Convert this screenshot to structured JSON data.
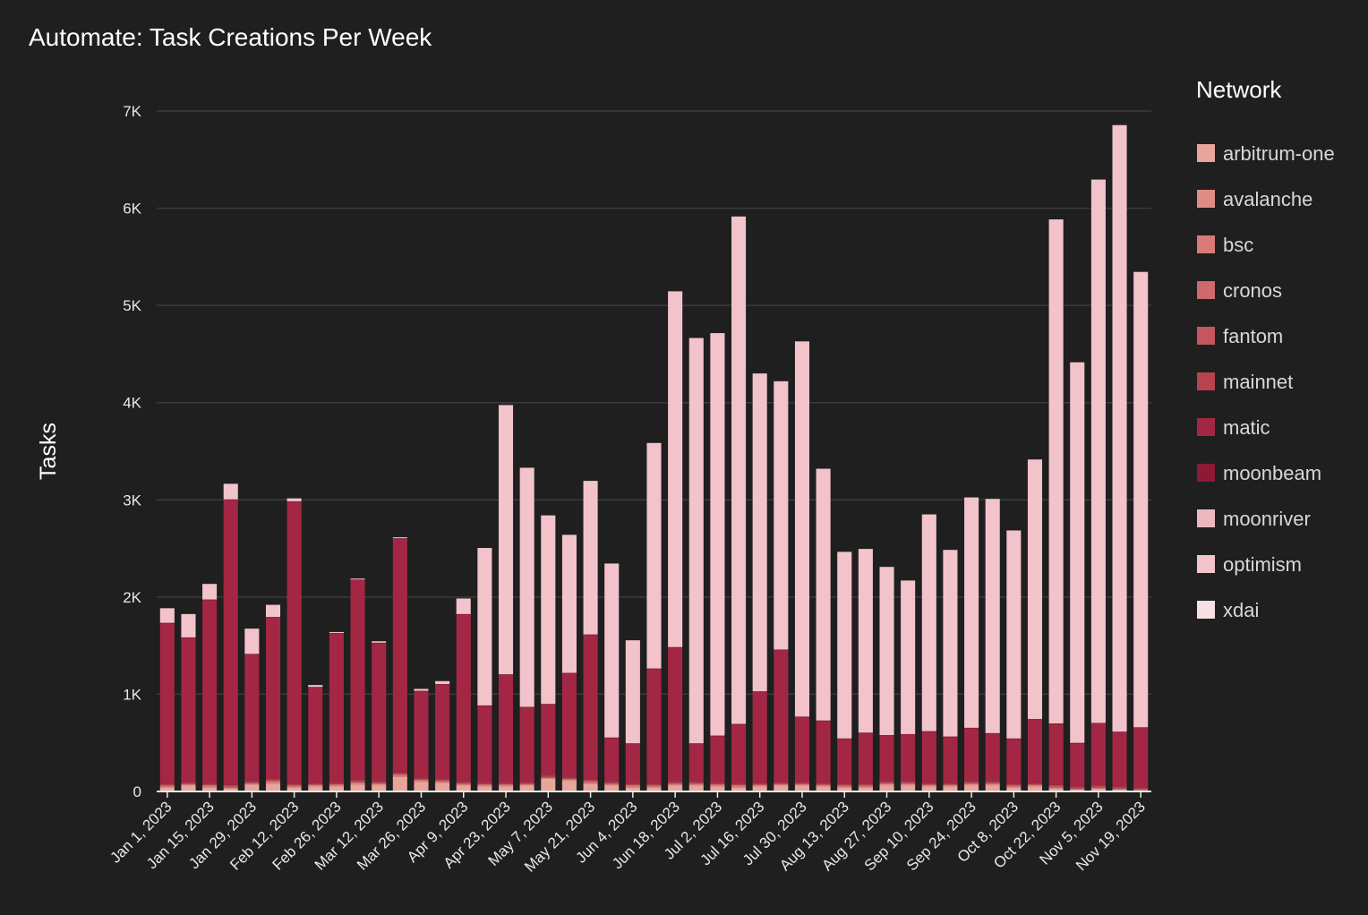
{
  "chart_data": {
    "type": "bar",
    "stacked": true,
    "title": "Automate: Task Creations Per Week",
    "xlabel": "",
    "ylabel": "Tasks",
    "ylim": [
      0,
      7000
    ],
    "yticks": [
      0,
      1000,
      2000,
      3000,
      4000,
      5000,
      6000,
      7000
    ],
    "ytick_labels": [
      "0",
      "1K",
      "2K",
      "3K",
      "4K",
      "5K",
      "6K",
      "7K"
    ],
    "grid": true,
    "legend": {
      "title": "Network",
      "position": "right"
    },
    "categories": [
      "Jan 1, 2023",
      "Jan 8, 2023",
      "Jan 15, 2023",
      "Jan 22, 2023",
      "Jan 29, 2023",
      "Feb 5, 2023",
      "Feb 12, 2023",
      "Feb 19, 2023",
      "Feb 26, 2023",
      "Mar 5, 2023",
      "Mar 12, 2023",
      "Mar 19, 2023",
      "Mar 26, 2023",
      "Apr 2, 2023",
      "Apr 9, 2023",
      "Apr 16, 2023",
      "Apr 23, 2023",
      "Apr 30, 2023",
      "May 7, 2023",
      "May 14, 2023",
      "May 21, 2023",
      "May 28, 2023",
      "Jun 4, 2023",
      "Jun 11, 2023",
      "Jun 18, 2023",
      "Jun 25, 2023",
      "Jul 2, 2023",
      "Jul 9, 2023",
      "Jul 16, 2023",
      "Jul 23, 2023",
      "Jul 30, 2023",
      "Aug 6, 2023",
      "Aug 13, 2023",
      "Aug 20, 2023",
      "Aug 27, 2023",
      "Sep 3, 2023",
      "Sep 10, 2023",
      "Sep 17, 2023",
      "Sep 24, 2023",
      "Oct 1, 2023",
      "Oct 8, 2023",
      "Oct 15, 2023",
      "Oct 22, 2023",
      "Oct 29, 2023",
      "Nov 5, 2023",
      "Nov 12, 2023",
      "Nov 19, 2023"
    ],
    "xtick_labels": [
      "Jan 1, 2023",
      "Jan 15, 2023",
      "Jan 29, 2023",
      "Feb 12, 2023",
      "Feb 26, 2023",
      "Mar 12, 2023",
      "Mar 26, 2023",
      "Apr 9, 2023",
      "Apr 23, 2023",
      "May 7, 2023",
      "May 21, 2023",
      "Jun 4, 2023",
      "Jun 18, 2023",
      "Jul 2, 2023",
      "Jul 16, 2023",
      "Jul 30, 2023",
      "Aug 13, 2023",
      "Aug 27, 2023",
      "Sep 10, 2023",
      "Sep 24, 2023",
      "Oct 8, 2023",
      "Oct 22, 2023",
      "Nov 5, 2023",
      "Nov 19, 2023"
    ],
    "series": [
      {
        "name": "arbitrum-one",
        "color": "#e8a59b",
        "values": [
          40,
          60,
          40,
          30,
          70,
          80,
          40,
          50,
          50,
          70,
          60,
          150,
          100,
          90,
          60,
          50,
          50,
          60,
          130,
          110,
          80,
          60,
          40,
          40,
          60,
          60,
          50,
          40,
          50,
          60,
          60,
          50,
          40,
          40,
          60,
          60,
          50,
          50,
          60,
          60,
          40,
          50,
          30,
          20,
          30,
          20,
          10
        ]
      },
      {
        "name": "avalanche",
        "color": "#e08c85",
        "values": [
          10,
          10,
          10,
          10,
          10,
          15,
          10,
          10,
          10,
          15,
          15,
          10,
          10,
          10,
          10,
          10,
          10,
          10,
          10,
          10,
          10,
          10,
          10,
          10,
          10,
          10,
          10,
          10,
          10,
          10,
          10,
          10,
          10,
          10,
          15,
          15,
          10,
          10,
          15,
          15,
          10,
          10,
          10,
          5,
          5,
          5,
          5
        ]
      },
      {
        "name": "bsc",
        "color": "#d97a78",
        "values": [
          5,
          5,
          10,
          5,
          5,
          10,
          5,
          5,
          10,
          10,
          10,
          10,
          5,
          5,
          10,
          10,
          10,
          5,
          5,
          5,
          10,
          10,
          10,
          5,
          10,
          10,
          10,
          10,
          5,
          5,
          5,
          5,
          5,
          5,
          10,
          10,
          5,
          5,
          10,
          10,
          5,
          5,
          5,
          5,
          5,
          5,
          5
        ]
      },
      {
        "name": "cronos",
        "color": "#d0696c",
        "values": [
          5,
          5,
          5,
          5,
          5,
          5,
          5,
          5,
          5,
          5,
          5,
          5,
          5,
          5,
          5,
          5,
          5,
          5,
          5,
          5,
          5,
          5,
          5,
          5,
          5,
          5,
          5,
          5,
          5,
          5,
          5,
          5,
          5,
          5,
          5,
          5,
          5,
          5,
          5,
          5,
          5,
          5,
          5,
          5,
          5,
          5,
          5
        ]
      },
      {
        "name": "fantom",
        "color": "#c5565f",
        "values": [
          5,
          5,
          5,
          5,
          5,
          5,
          5,
          5,
          5,
          5,
          5,
          5,
          5,
          5,
          5,
          5,
          5,
          5,
          5,
          5,
          5,
          5,
          5,
          5,
          5,
          5,
          5,
          5,
          5,
          5,
          5,
          5,
          5,
          5,
          5,
          5,
          5,
          5,
          5,
          5,
          5,
          5,
          5,
          5,
          5,
          5,
          5
        ]
      },
      {
        "name": "mainnet",
        "color": "#b8434f",
        "values": [
          10,
          10,
          10,
          10,
          10,
          10,
          10,
          10,
          10,
          10,
          10,
          10,
          10,
          10,
          10,
          10,
          10,
          10,
          10,
          10,
          10,
          10,
          10,
          10,
          10,
          10,
          10,
          10,
          10,
          10,
          10,
          10,
          10,
          10,
          10,
          10,
          10,
          10,
          10,
          10,
          10,
          10,
          10,
          10,
          10,
          10,
          10
        ]
      },
      {
        "name": "matic",
        "color": "#a32744",
        "values": [
          1655,
          1485,
          1890,
          2935,
          1305,
          1665,
          2905,
          985,
          1535,
          2060,
          1420,
          2410,
          895,
          975,
          1720,
          790,
          1110,
          770,
          730,
          1070,
          1490,
          450,
          410,
          1185,
          1380,
          390,
          480,
          610,
          940,
          1360,
          670,
          640,
          465,
          525,
          470,
          480,
          530,
          475,
          545,
          490,
          465,
          655,
          630,
          445,
          640,
          560,
          615
        ]
      },
      {
        "name": "moonbeam",
        "color": "#8c1a36",
        "values": [
          5,
          5,
          5,
          5,
          5,
          5,
          5,
          5,
          5,
          5,
          5,
          5,
          5,
          5,
          5,
          5,
          5,
          5,
          5,
          5,
          5,
          5,
          5,
          5,
          5,
          5,
          5,
          5,
          5,
          5,
          5,
          5,
          5,
          5,
          5,
          5,
          5,
          5,
          5,
          5,
          5,
          5,
          5,
          5,
          5,
          5,
          5
        ]
      },
      {
        "name": "moonriver",
        "color": "#ecb9bf",
        "values": [
          0,
          0,
          0,
          0,
          0,
          0,
          0,
          0,
          0,
          0,
          0,
          0,
          0,
          0,
          0,
          0,
          0,
          0,
          0,
          0,
          0,
          0,
          0,
          0,
          0,
          0,
          0,
          0,
          0,
          0,
          0,
          0,
          0,
          0,
          0,
          0,
          0,
          0,
          0,
          0,
          0,
          0,
          0,
          0,
          0,
          0,
          0
        ]
      },
      {
        "name": "optimism",
        "color": "#f2c3cb",
        "values": [
          150,
          240,
          160,
          160,
          260,
          125,
          30,
          20,
          10,
          10,
          15,
          10,
          20,
          30,
          160,
          1620,
          2770,
          2460,
          1940,
          1420,
          1580,
          1790,
          1060,
          2320,
          3660,
          4170,
          4140,
          5220,
          3270,
          2760,
          3860,
          2590,
          1920,
          1890,
          1730,
          1580,
          2230,
          1920,
          2370,
          2410,
          2140,
          2670,
          5185,
          3915,
          5590,
          6240,
          4685
        ]
      },
      {
        "name": "xdai",
        "color": "#f8dfe3",
        "values": [
          0,
          0,
          0,
          0,
          0,
          0,
          0,
          0,
          0,
          0,
          0,
          0,
          0,
          0,
          0,
          0,
          0,
          0,
          0,
          0,
          0,
          0,
          0,
          0,
          0,
          0,
          0,
          0,
          0,
          0,
          0,
          0,
          0,
          0,
          0,
          0,
          0,
          0,
          0,
          0,
          0,
          0,
          0,
          0,
          0,
          0,
          0
        ]
      }
    ]
  }
}
